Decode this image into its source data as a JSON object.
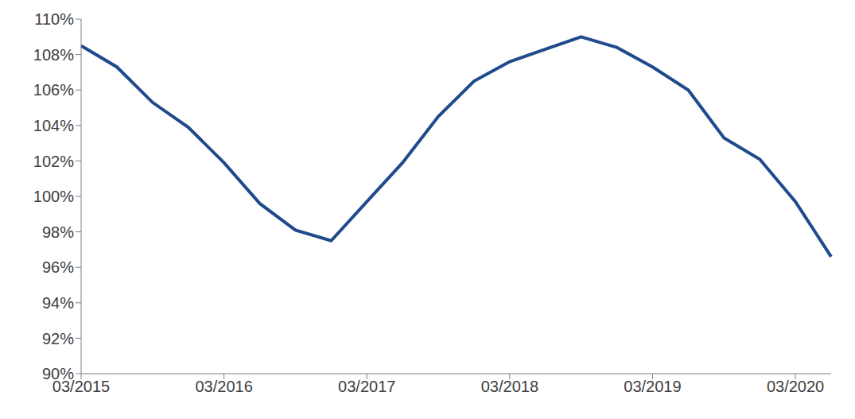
{
  "chart_data": {
    "type": "line",
    "categories": [
      "03/2015",
      null,
      null,
      null,
      "03/2016",
      null,
      null,
      null,
      "03/2017",
      null,
      null,
      null,
      "03/2018",
      null,
      null,
      null,
      "03/2019",
      null,
      null,
      null,
      "03/2020",
      null
    ],
    "values": [
      108.5,
      107.3,
      105.3,
      103.9,
      101.9,
      99.6,
      98.1,
      97.5,
      99.7,
      101.9,
      104.5,
      106.5,
      107.6,
      108.3,
      109.0,
      108.4,
      107.3,
      106.0,
      103.3,
      102.1,
      99.7,
      96.6
    ],
    "color": "#1f4a8c",
    "ylim": [
      90,
      110
    ],
    "yticks": [
      {
        "value": 90,
        "label": "90%"
      },
      {
        "value": 92,
        "label": "92%"
      },
      {
        "value": 94,
        "label": "94%"
      },
      {
        "value": 96,
        "label": "96%"
      },
      {
        "value": 98,
        "label": "98%"
      },
      {
        "value": 100,
        "label": "100%"
      },
      {
        "value": 102,
        "label": "102%"
      },
      {
        "value": 104,
        "label": "104%"
      },
      {
        "value": 106,
        "label": "106%"
      },
      {
        "value": 108,
        "label": "108%"
      },
      {
        "value": 110,
        "label": "110%"
      }
    ],
    "grid": false
  }
}
